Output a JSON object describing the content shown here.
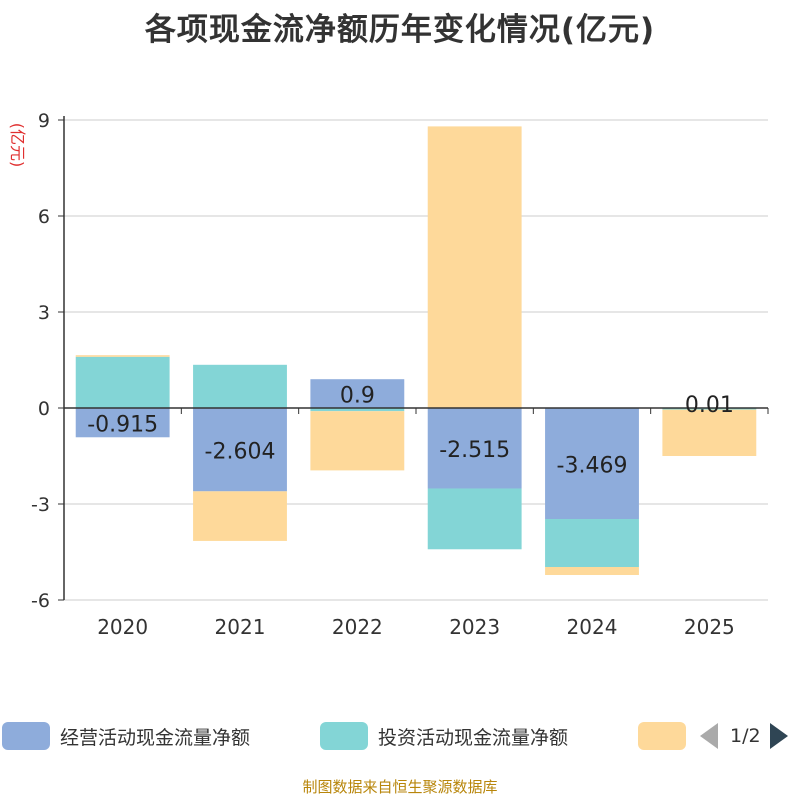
{
  "chart_data": {
    "type": "bar",
    "stacked": true,
    "title": "各项现金流净额历年变化情况(亿元)",
    "ylabel": "(亿元)",
    "ylim": [
      -6,
      9
    ],
    "yticks": [
      9,
      6,
      3,
      0,
      -3,
      -6
    ],
    "categories": [
      "2020",
      "2021",
      "2022",
      "2023",
      "2024",
      "2025"
    ],
    "series": [
      {
        "name": "经营活动现金流量净额",
        "color": "#8eacdb",
        "values": [
          -0.915,
          -2.604,
          0.9,
          -2.515,
          -3.469,
          0.01
        ],
        "labels": [
          "-0.915",
          "-2.604",
          "0.9",
          "-2.515",
          "-3.469",
          "0.01"
        ]
      },
      {
        "name": "投资活动现金流量净额",
        "color": "#83d5d6",
        "values": [
          1.6,
          1.35,
          -0.1,
          -1.9,
          -1.5,
          -0.05
        ]
      },
      {
        "name": "",
        "color": "#fed99a",
        "values": [
          0.05,
          -1.55,
          -1.85,
          8.8,
          -0.25,
          -1.45
        ]
      }
    ],
    "legend_position": "bottom",
    "pager": "1/2"
  },
  "source_note": "制图数据来自恒生聚源数据库"
}
